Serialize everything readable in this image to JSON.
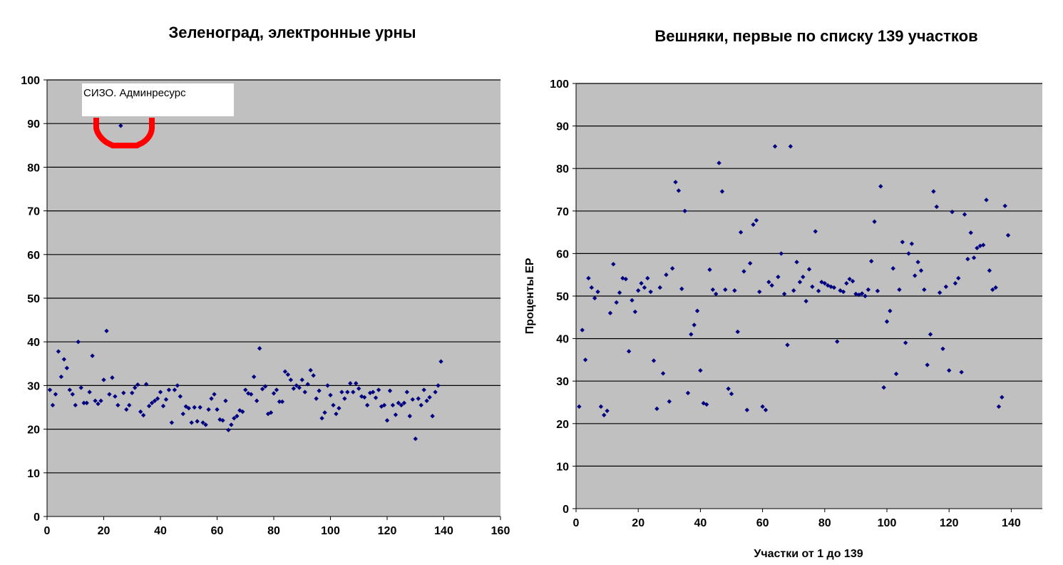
{
  "chart_data": [
    {
      "type": "scatter",
      "title": "Зеленоград, электронные урны",
      "xlabel": "",
      "ylabel": "",
      "xlim": [
        0,
        160
      ],
      "ylim": [
        0,
        100
      ],
      "xticks": [
        0,
        20,
        40,
        60,
        80,
        100,
        120,
        140,
        160
      ],
      "yticks": [
        0,
        10,
        20,
        30,
        40,
        50,
        60,
        70,
        80,
        90,
        100
      ],
      "grid": "horizontal",
      "plot_background": "#C0C0C0",
      "marker_color": "#000080",
      "annotation": {
        "text": "СИЗО. Админресурс",
        "highlight_color": "#FF0000",
        "target_x": 26,
        "target_y": 89.5
      },
      "y": [
        29,
        25.5,
        28,
        37.8,
        32,
        36,
        34,
        29,
        28,
        25.5,
        40,
        29.5,
        26,
        26,
        28.5,
        36.8,
        26.5,
        25.8,
        26.5,
        31.3,
        42.5,
        28,
        31.8,
        27.5,
        25.5,
        89.5,
        28.3,
        24.5,
        25.5,
        28.3,
        29.5,
        30.2,
        24,
        23.2,
        30.3,
        25.3,
        26,
        26.5,
        27,
        28.5,
        25.3,
        26.8,
        29,
        21.5,
        29,
        30,
        27.5,
        23.5,
        25.2,
        24.8,
        21.5,
        25,
        21.8,
        25,
        21.5,
        21,
        24.5,
        27,
        28,
        24.5,
        22.2,
        22,
        26.5,
        19.8,
        21,
        22.5,
        23,
        24.3,
        24,
        29,
        28.2,
        28,
        32,
        26.5,
        38.5,
        29.2,
        29.8,
        23.5,
        23.8,
        28.2,
        29,
        26.3,
        26.3,
        33.2,
        32.5,
        31.3,
        29.3,
        30,
        29.5,
        31.3,
        28.5,
        30.3,
        33.5,
        32.3,
        27,
        28.8,
        22.5,
        23.8,
        30,
        27.8,
        25.5,
        23.5,
        24.8,
        28.5,
        27,
        28.5,
        30.5,
        28.5,
        30.5,
        29.3,
        27.5,
        27.3,
        25.5,
        28.3,
        28.5,
        27.2,
        29,
        25.2,
        25.5,
        22,
        28.8,
        25.5,
        23.3,
        26,
        25.5,
        26,
        28.5,
        23,
        26.8,
        17.8,
        27,
        25.5,
        29,
        26.5,
        27.3,
        23,
        28.5,
        30,
        35.5
      ]
    },
    {
      "type": "scatter",
      "title": "Вешняки, первые по списку 139 участков",
      "xlabel": "Участки от 1 до 139",
      "ylabel": "Проценты ЕР",
      "xlim": [
        0,
        150
      ],
      "ylim": [
        0,
        100
      ],
      "xticks": [
        0,
        20,
        40,
        60,
        80,
        100,
        120,
        140
      ],
      "yticks": [
        0,
        10,
        20,
        30,
        40,
        50,
        60,
        70,
        80,
        90,
        100
      ],
      "grid": "horizontal",
      "plot_background": "#C0C0C0",
      "marker_color": "#000080",
      "y": [
        24,
        42,
        35,
        54.2,
        52,
        49.5,
        51,
        24,
        22,
        23,
        46,
        57.5,
        48.5,
        50.8,
        54.2,
        54,
        37,
        49,
        46.3,
        51.3,
        53,
        52,
        54.2,
        51,
        34.8,
        23.5,
        52,
        31.8,
        55,
        25.2,
        56.5,
        76.8,
        74.8,
        51.7,
        70,
        27.2,
        41,
        43.2,
        46.5,
        32.5,
        24.8,
        24.5,
        56.2,
        51.5,
        50.5,
        81.3,
        74.6,
        51.5,
        28.2,
        27,
        51.3,
        41.6,
        65,
        55.8,
        23.2,
        57.7,
        66.8,
        67.8,
        51,
        24,
        23.2,
        53.3,
        52.5,
        85.2,
        54.5,
        60,
        50.5,
        38.5,
        85.2,
        51.3,
        58,
        53.3,
        54.5,
        48.8,
        56.3,
        52.2,
        65.2,
        51.2,
        53.3,
        53,
        52.5,
        52.2,
        52,
        39.3,
        51.3,
        51,
        53,
        54,
        53.5,
        50.5,
        50.3,
        50.6,
        50,
        51.5,
        58.2,
        67.5,
        51.2,
        75.8,
        28.5,
        44,
        46.5,
        56.5,
        31.7,
        51.5,
        62.7,
        39,
        60,
        62.3,
        54.8,
        58,
        56,
        51.5,
        33.8,
        41,
        74.6,
        71,
        50.8,
        37.6,
        52.2,
        32.5,
        69.8,
        53,
        54.2,
        32.1,
        69.2,
        58.7,
        64.9,
        59,
        61.3,
        61.8,
        62,
        72.6,
        56,
        51.5,
        52,
        24,
        26.2,
        71.2,
        64.3
      ]
    }
  ]
}
